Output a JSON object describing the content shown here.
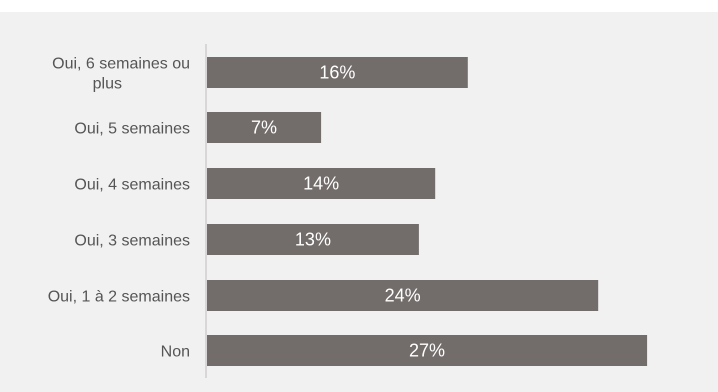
{
  "chart_data": {
    "type": "bar",
    "orientation": "horizontal",
    "categories": [
      [
        "Oui, 6 semaines ou",
        "plus"
      ],
      [
        "Oui, 5 semaines"
      ],
      [
        "Oui, 4 semaines"
      ],
      [
        "Oui, 3 semaines"
      ],
      [
        "Oui, 1 à 2 semaines"
      ],
      [
        "Non"
      ]
    ],
    "values": [
      16,
      7,
      14,
      13,
      24,
      27
    ],
    "value_labels": [
      "16%",
      "7%",
      "14%",
      "13%",
      "24%",
      "27%"
    ],
    "xlim": [
      0,
      30
    ],
    "grid": false,
    "legend": "none",
    "colors": {
      "bar": "#726d6b",
      "axis": "#bfbcbb",
      "panel": "#f2f1f1",
      "category_text": "#555555",
      "value_text": "#ffffff"
    }
  }
}
